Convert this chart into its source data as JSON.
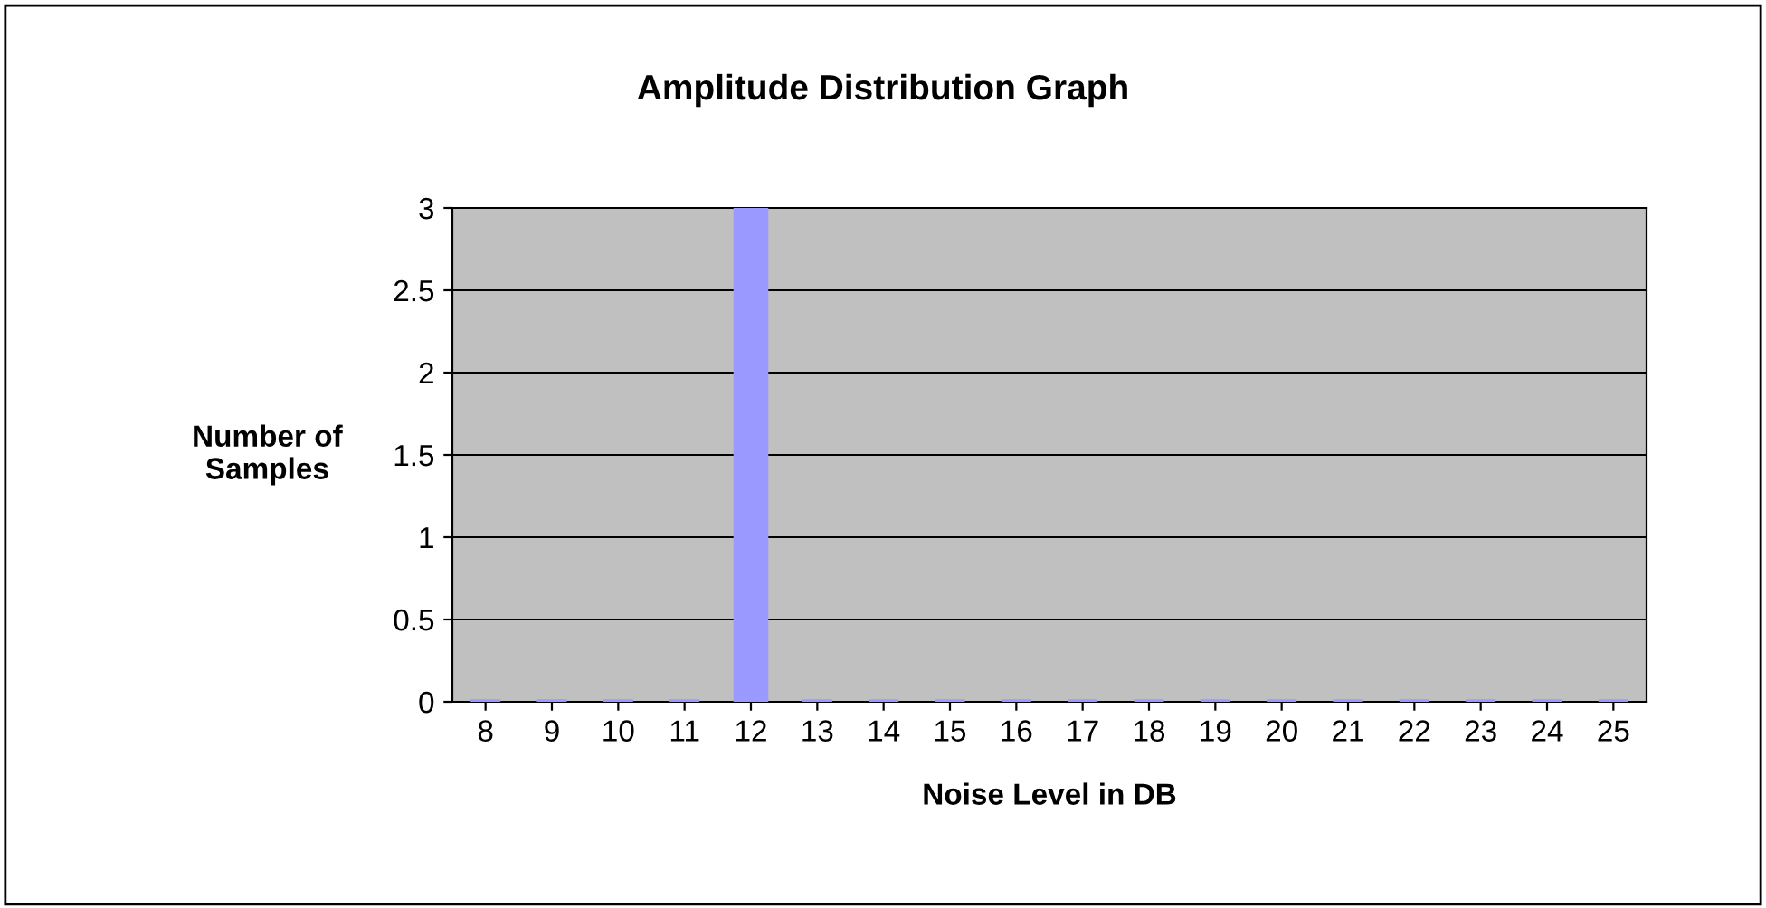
{
  "chart_data": {
    "type": "bar",
    "title": "Amplitude Distribution Graph",
    "xlabel": "Noise Level in DB",
    "ylabel": "Number of\nSamples",
    "categories": [
      "8",
      "9",
      "10",
      "11",
      "12",
      "13",
      "14",
      "15",
      "16",
      "17",
      "18",
      "19",
      "20",
      "21",
      "22",
      "23",
      "24",
      "25"
    ],
    "values": [
      0,
      0,
      0,
      0,
      3,
      0,
      0,
      0,
      0,
      0,
      0,
      0,
      0,
      0,
      0,
      0,
      0,
      0
    ],
    "color": "#9999ff",
    "ylim": [
      0,
      3
    ],
    "yticks": [
      0,
      0.5,
      1,
      1.5,
      2,
      2.5,
      3
    ],
    "grid": "y"
  }
}
